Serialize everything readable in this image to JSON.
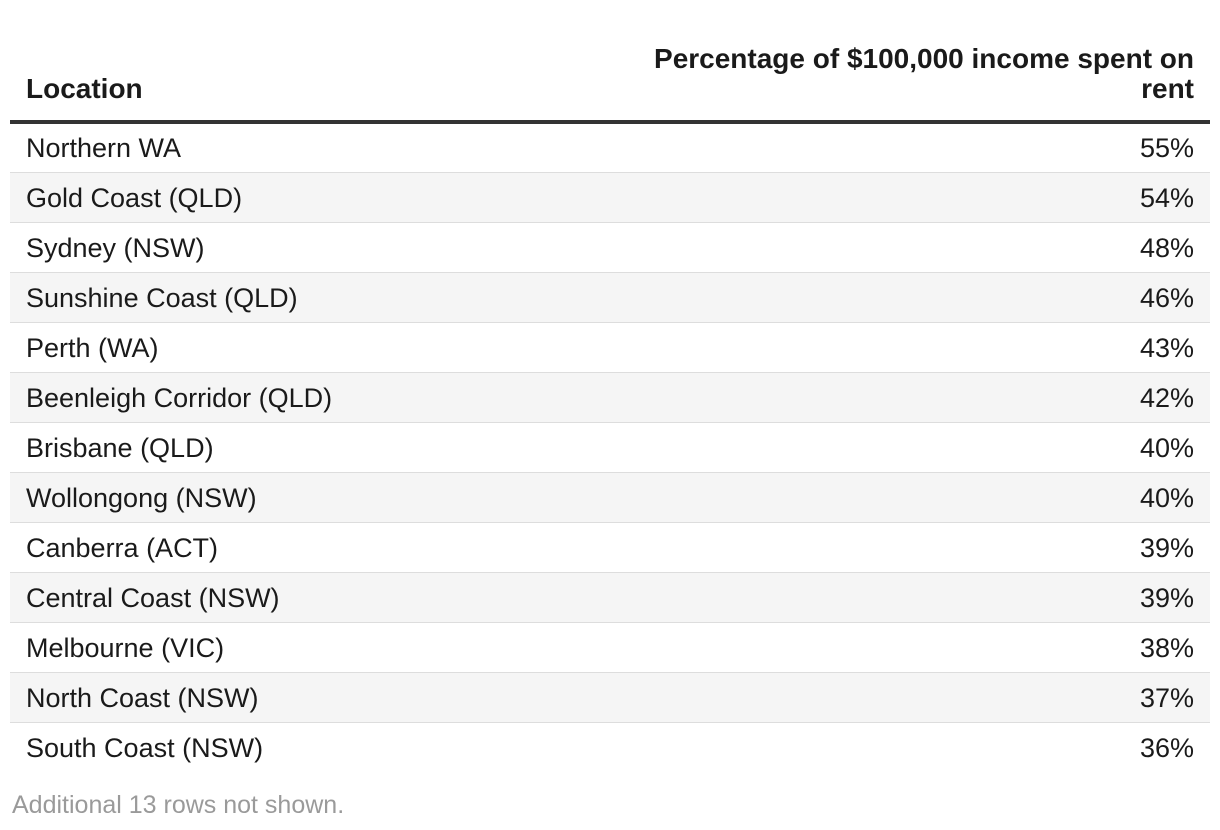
{
  "chart_data": {
    "type": "table",
    "columns": [
      "Location",
      "Percentage of $100,000 income spent on rent"
    ],
    "rows": [
      {
        "location": "Northern WA",
        "value": "55%"
      },
      {
        "location": "Gold Coast (QLD)",
        "value": "54%"
      },
      {
        "location": "Sydney (NSW)",
        "value": "48%"
      },
      {
        "location": "Sunshine Coast (QLD)",
        "value": "46%"
      },
      {
        "location": "Perth (WA)",
        "value": "43%"
      },
      {
        "location": "Beenleigh Corridor (QLD)",
        "value": "42%"
      },
      {
        "location": "Brisbane (QLD)",
        "value": "40%"
      },
      {
        "location": "Wollongong (NSW)",
        "value": "40%"
      },
      {
        "location": "Canberra (ACT)",
        "value": "39%"
      },
      {
        "location": "Central Coast (NSW)",
        "value": "39%"
      },
      {
        "location": "Melbourne (VIC)",
        "value": "38%"
      },
      {
        "location": "North Coast (NSW)",
        "value": "37%"
      },
      {
        "location": "South Coast (NSW)",
        "value": "36%"
      }
    ],
    "footnote": "Additional 13 rows not shown."
  }
}
